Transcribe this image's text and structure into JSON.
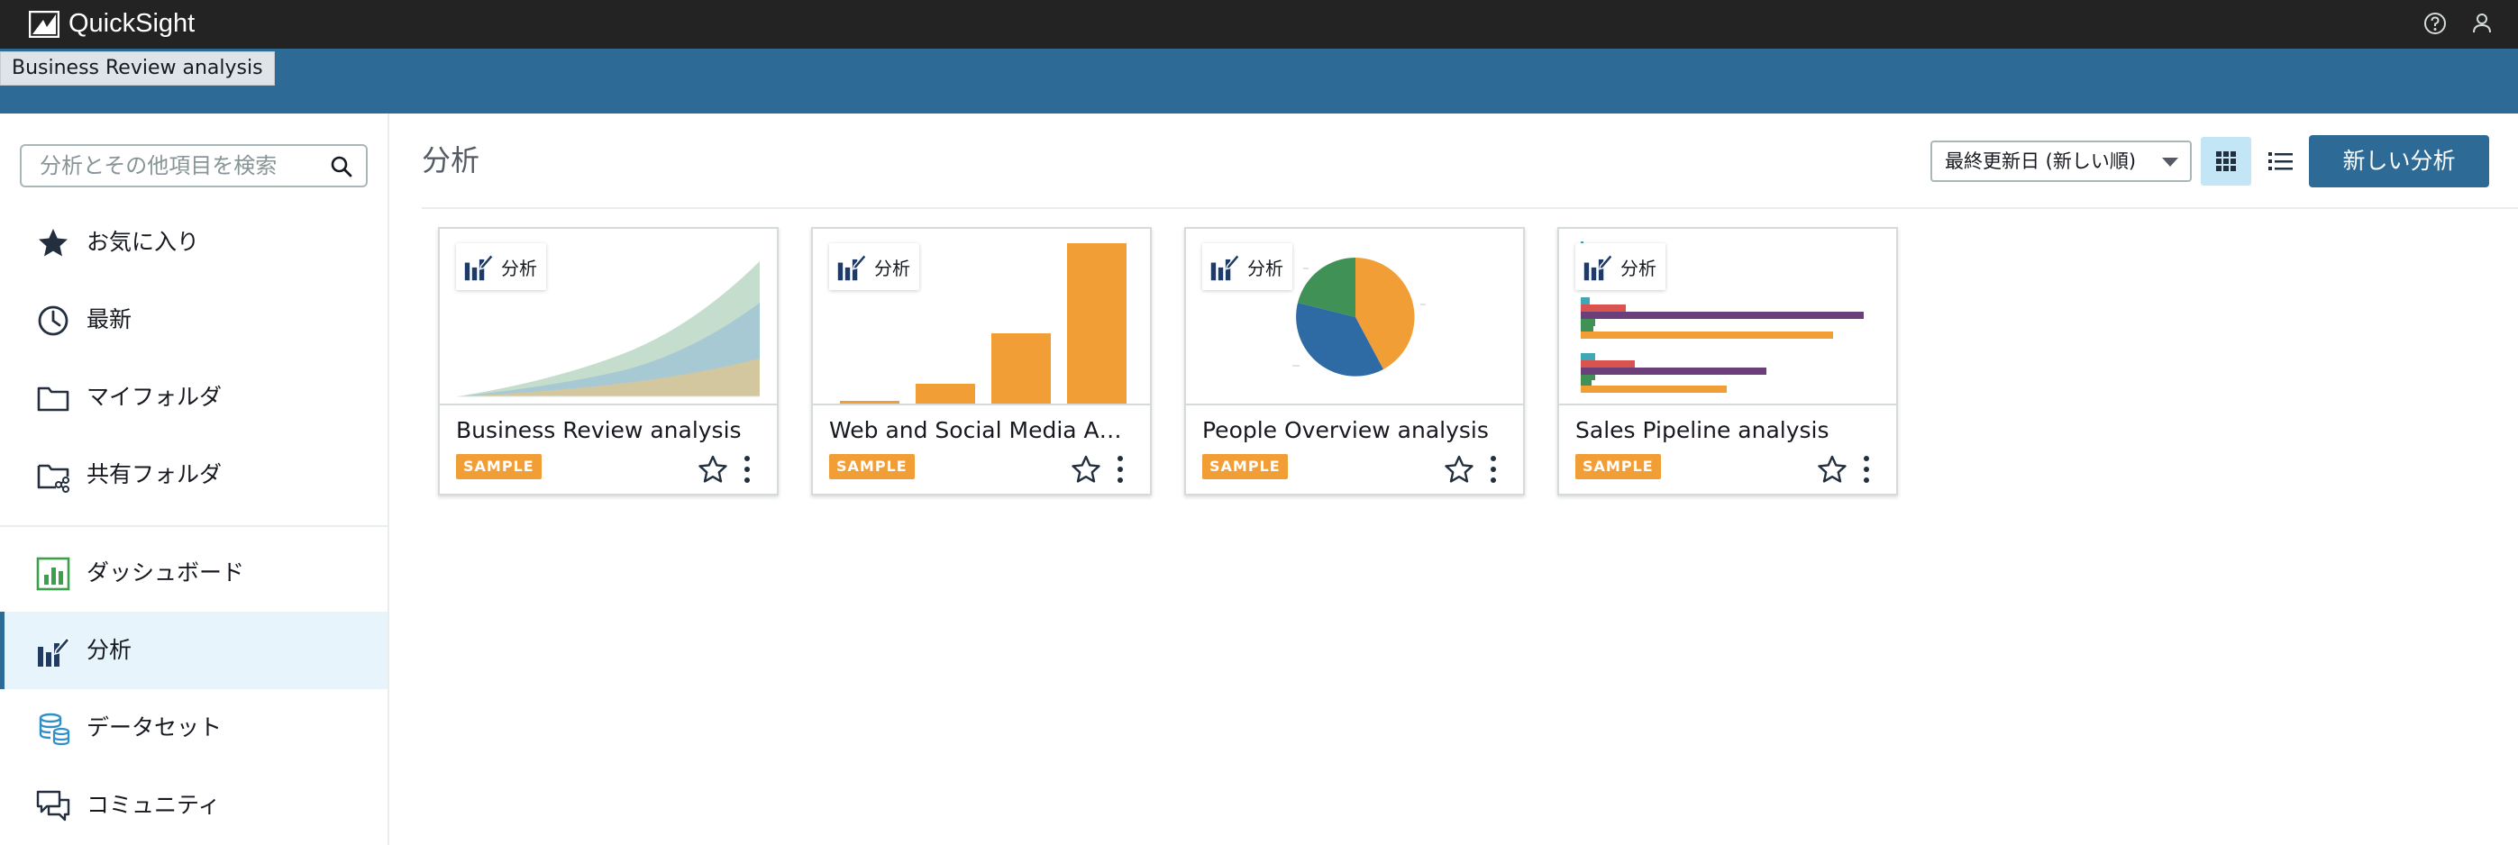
{
  "topbar": {
    "app_name": "QuickSight"
  },
  "tooltip": {
    "text": "Business Review analysis"
  },
  "sidebar": {
    "search_placeholder": "分析とその他項目を検索",
    "items": [
      {
        "label": "お気に入り",
        "icon": "star-icon"
      },
      {
        "label": "最新",
        "icon": "clock-icon"
      },
      {
        "label": "マイフォルダ",
        "icon": "folder-icon"
      },
      {
        "label": "共有フォルダ",
        "icon": "shared-folder-icon"
      },
      {
        "label": "ダッシュボード",
        "icon": "dashboard-icon"
      },
      {
        "label": "分析",
        "icon": "analysis-icon",
        "active": true
      },
      {
        "label": "データセット",
        "icon": "dataset-icon"
      },
      {
        "label": "コミュニティ",
        "icon": "community-icon"
      }
    ]
  },
  "main": {
    "title": "分析",
    "sort": {
      "selected": "最終更新日 (新しい順)"
    },
    "view_mode": "grid",
    "new_button": "新しい分析",
    "cards": [
      {
        "badge": "分析",
        "title": "Business Review analysis",
        "tag": "SAMPLE",
        "thumbnail": "area-chart"
      },
      {
        "badge": "分析",
        "title": "Web and Social Media Anal...",
        "tag": "SAMPLE",
        "thumbnail": "bar-chart"
      },
      {
        "badge": "分析",
        "title": "People Overview analysis",
        "tag": "SAMPLE",
        "thumbnail": "pie-chart"
      },
      {
        "badge": "分析",
        "title": "Sales Pipeline analysis",
        "tag": "SAMPLE",
        "thumbnail": "horizontal-bar-chart"
      }
    ]
  },
  "colors": {
    "topbar": "#232323",
    "banner": "#2e6a96",
    "accent": "#2e6a96",
    "sample_tag": "#f29e37",
    "active_nav_bg": "#e7f4fb"
  }
}
